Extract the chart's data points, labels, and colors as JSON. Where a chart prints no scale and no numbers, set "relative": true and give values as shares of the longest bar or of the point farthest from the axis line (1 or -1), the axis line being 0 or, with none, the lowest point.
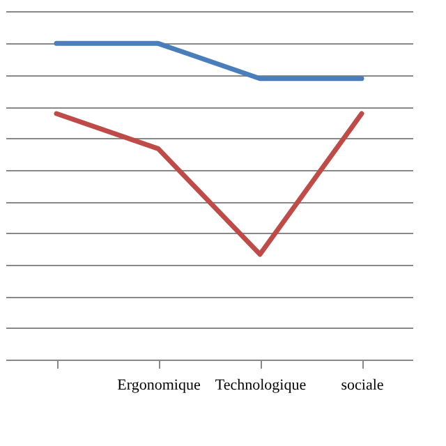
{
  "chart_data": {
    "type": "line",
    "relative": true,
    "categories": [
      null,
      "Ergonomique",
      "Technologique",
      "sociale"
    ],
    "series": [
      {
        "color": "#4a7ebb",
        "values": [
          1,
          1,
          0.889,
          0.889
        ]
      },
      {
        "color": "#be4b48",
        "values": [
          0.778,
          0.667,
          0.333,
          0.778
        ]
      }
    ],
    "grid": "y",
    "marker": "none",
    "line_style": "solid",
    "tick_labels": "x",
    "legend": false
  }
}
